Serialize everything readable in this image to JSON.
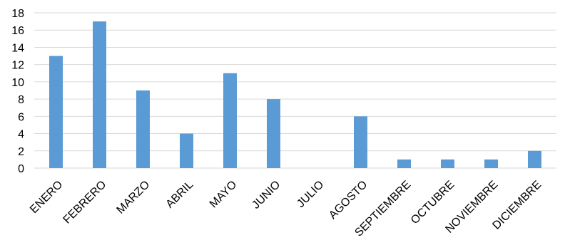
{
  "chart_data": {
    "type": "bar",
    "title": "",
    "xlabel": "",
    "ylabel": "",
    "categories": [
      "ENERO",
      "FEBRERO",
      "MARZO",
      "ABRIL",
      "MAYO",
      "JUNIO",
      "JULIO",
      "AGOSTO",
      "SEPTIEMBRE",
      "OCTUBRE",
      "NOVIEMBRE",
      "DICIEMBRE"
    ],
    "values": [
      13,
      17,
      9,
      4,
      11,
      8,
      0,
      6,
      1,
      1,
      1,
      2
    ],
    "ylim": [
      0,
      18
    ],
    "yticks": [
      0,
      2,
      4,
      6,
      8,
      10,
      12,
      14,
      16,
      18
    ],
    "grid": true,
    "legend": "none",
    "bar_color": "#5b9bd5"
  }
}
